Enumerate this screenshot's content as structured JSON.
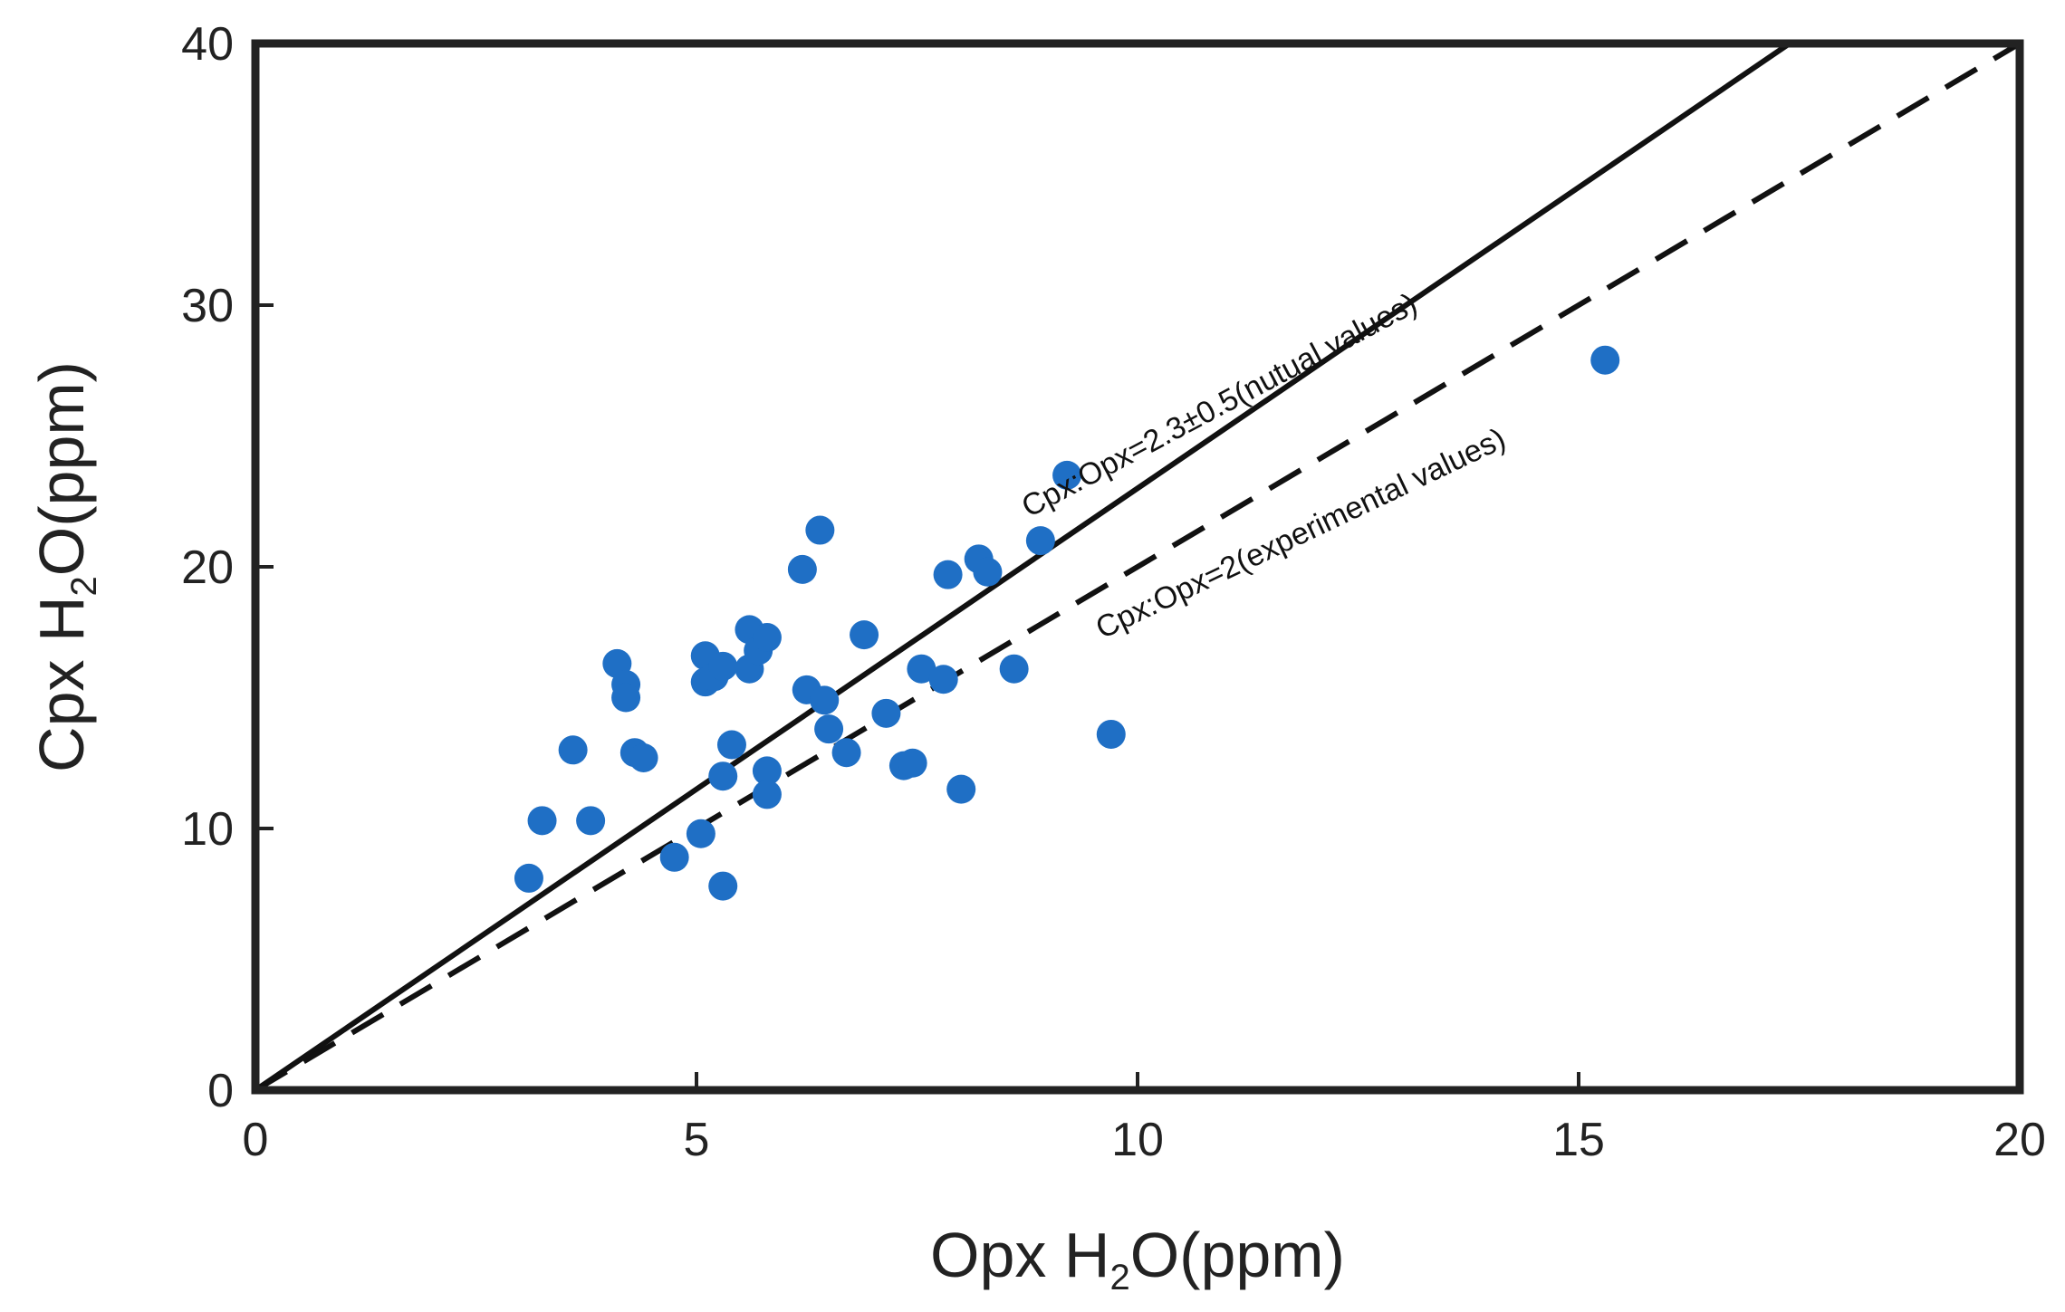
{
  "chart_data": {
    "type": "scatter",
    "xlabel": {
      "main": "Opx H",
      "sub": "2",
      "rest": "O(ppm)"
    },
    "ylabel": {
      "main": "Cpx H",
      "sub": "2",
      "rest": "O(ppm)"
    },
    "xlim": [
      0,
      20
    ],
    "ylim": [
      0,
      40
    ],
    "xticks": [
      0,
      5,
      10,
      15,
      20
    ],
    "yticks": [
      0,
      10,
      20,
      30,
      40
    ],
    "grid": false,
    "point_color": "#1f6fc5",
    "points": [
      [
        3.1,
        8.1
      ],
      [
        3.25,
        10.3
      ],
      [
        3.6,
        13.0
      ],
      [
        3.8,
        10.3
      ],
      [
        4.1,
        16.3
      ],
      [
        4.2,
        15.5
      ],
      [
        4.2,
        15.0
      ],
      [
        4.3,
        12.9
      ],
      [
        4.4,
        12.7
      ],
      [
        4.75,
        8.9
      ],
      [
        5.05,
        9.8
      ],
      [
        5.1,
        16.6
      ],
      [
        5.1,
        15.6
      ],
      [
        5.2,
        15.8
      ],
      [
        5.3,
        16.2
      ],
      [
        5.3,
        12.0
      ],
      [
        5.3,
        7.8
      ],
      [
        5.4,
        13.2
      ],
      [
        5.6,
        17.6
      ],
      [
        5.6,
        16.1
      ],
      [
        5.7,
        16.8
      ],
      [
        5.8,
        17.3
      ],
      [
        5.8,
        12.2
      ],
      [
        5.8,
        11.3
      ],
      [
        6.2,
        19.9
      ],
      [
        6.25,
        15.3
      ],
      [
        6.4,
        21.4
      ],
      [
        6.45,
        14.9
      ],
      [
        6.5,
        13.8
      ],
      [
        6.7,
        12.9
      ],
      [
        6.9,
        17.4
      ],
      [
        7.15,
        14.4
      ],
      [
        7.35,
        12.4
      ],
      [
        7.45,
        12.5
      ],
      [
        7.55,
        16.1
      ],
      [
        7.8,
        15.7
      ],
      [
        7.85,
        19.7
      ],
      [
        8.0,
        11.5
      ],
      [
        8.2,
        20.3
      ],
      [
        8.3,
        19.8
      ],
      [
        8.6,
        16.1
      ],
      [
        8.9,
        21.0
      ],
      [
        9.2,
        23.5
      ],
      [
        9.7,
        13.6
      ],
      [
        15.3,
        27.9
      ]
    ],
    "lines": [
      {
        "label": "Cpx:Opx=2.3±0.5(nutual values)",
        "slope": 2.3,
        "style": "solid"
      },
      {
        "label": "Cpx:Opx=2(experimental values)",
        "slope": 2,
        "style": "dashed"
      }
    ]
  }
}
